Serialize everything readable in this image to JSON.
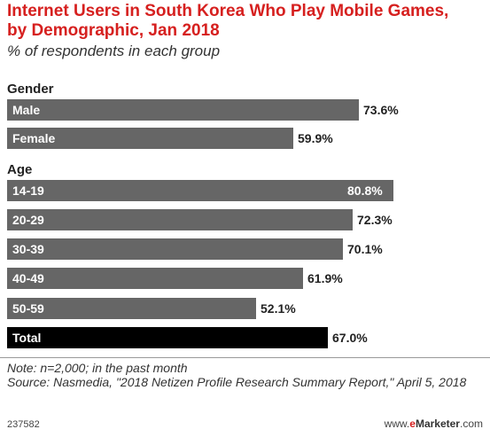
{
  "header": {
    "title": "Internet Users in South Korea Who Play Mobile Games, by Demographic, Jan 2018",
    "subtitle": "% of respondents in each group"
  },
  "chart_data": {
    "type": "bar",
    "orientation": "horizontal",
    "title": "Internet Users in South Korea Who Play Mobile Games, by Demographic, Jan 2018",
    "subtitle": "% of respondents in each group",
    "xlim": [
      0,
      100
    ],
    "grid": false,
    "legend": "none",
    "groups": [
      {
        "name": "Gender",
        "categories": [
          "Male",
          "Female"
        ],
        "values": [
          73.6,
          59.9
        ],
        "value_labels": [
          "73.6%",
          "59.9%"
        ]
      },
      {
        "name": "Age",
        "categories": [
          "14-19",
          "20-29",
          "30-39",
          "40-49",
          "50-59",
          "Total"
        ],
        "values": [
          80.8,
          72.3,
          70.1,
          61.9,
          52.1,
          67.0
        ],
        "value_labels": [
          "80.8%",
          "72.3%",
          "70.1%",
          "61.9%",
          "52.1%",
          "67.0%"
        ]
      }
    ],
    "colors": {
      "bar": "#666666",
      "total": "#000000",
      "title": "#d6201f"
    }
  },
  "footer": {
    "note": "Note: n=2,000; in the past month",
    "source": "Source: Nasmedia, \"2018 Netizen Profile Research Summary Report,\" April 5, 2018",
    "chart_id": "237582",
    "brand_prefix": "www.",
    "brand_e": "e",
    "brand_name": "Marketer",
    "brand_suffix": ".com"
  }
}
